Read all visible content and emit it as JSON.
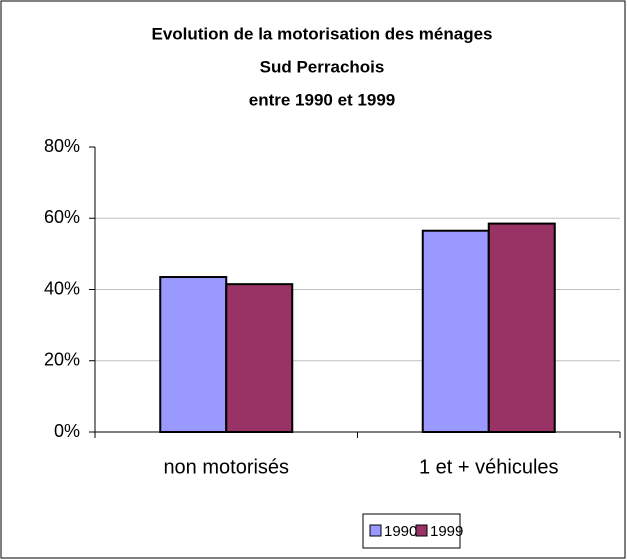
{
  "chart_data": {
    "type": "bar",
    "title": [
      "Evolution de la motorisation des ménages",
      "Sud Perrachois",
      "entre 1990 et 1999"
    ],
    "categories": [
      "non motorisés",
      "1 et + véhicules"
    ],
    "series": [
      {
        "name": "1990",
        "color": "#9999ff",
        "values": [
          43.5,
          56.5
        ]
      },
      {
        "name": "1999",
        "color": "#993366",
        "values": [
          41.5,
          58.5
        ]
      }
    ],
    "ylim": [
      0,
      80
    ],
    "yticks": [
      {
        "value": 0,
        "label": "0%"
      },
      {
        "value": 20,
        "label": "20%"
      },
      {
        "value": 40,
        "label": "40%"
      },
      {
        "value": 60,
        "label": "60%"
      },
      {
        "value": 80,
        "label": "80%"
      }
    ],
    "grid": true,
    "legend": "bottom"
  }
}
